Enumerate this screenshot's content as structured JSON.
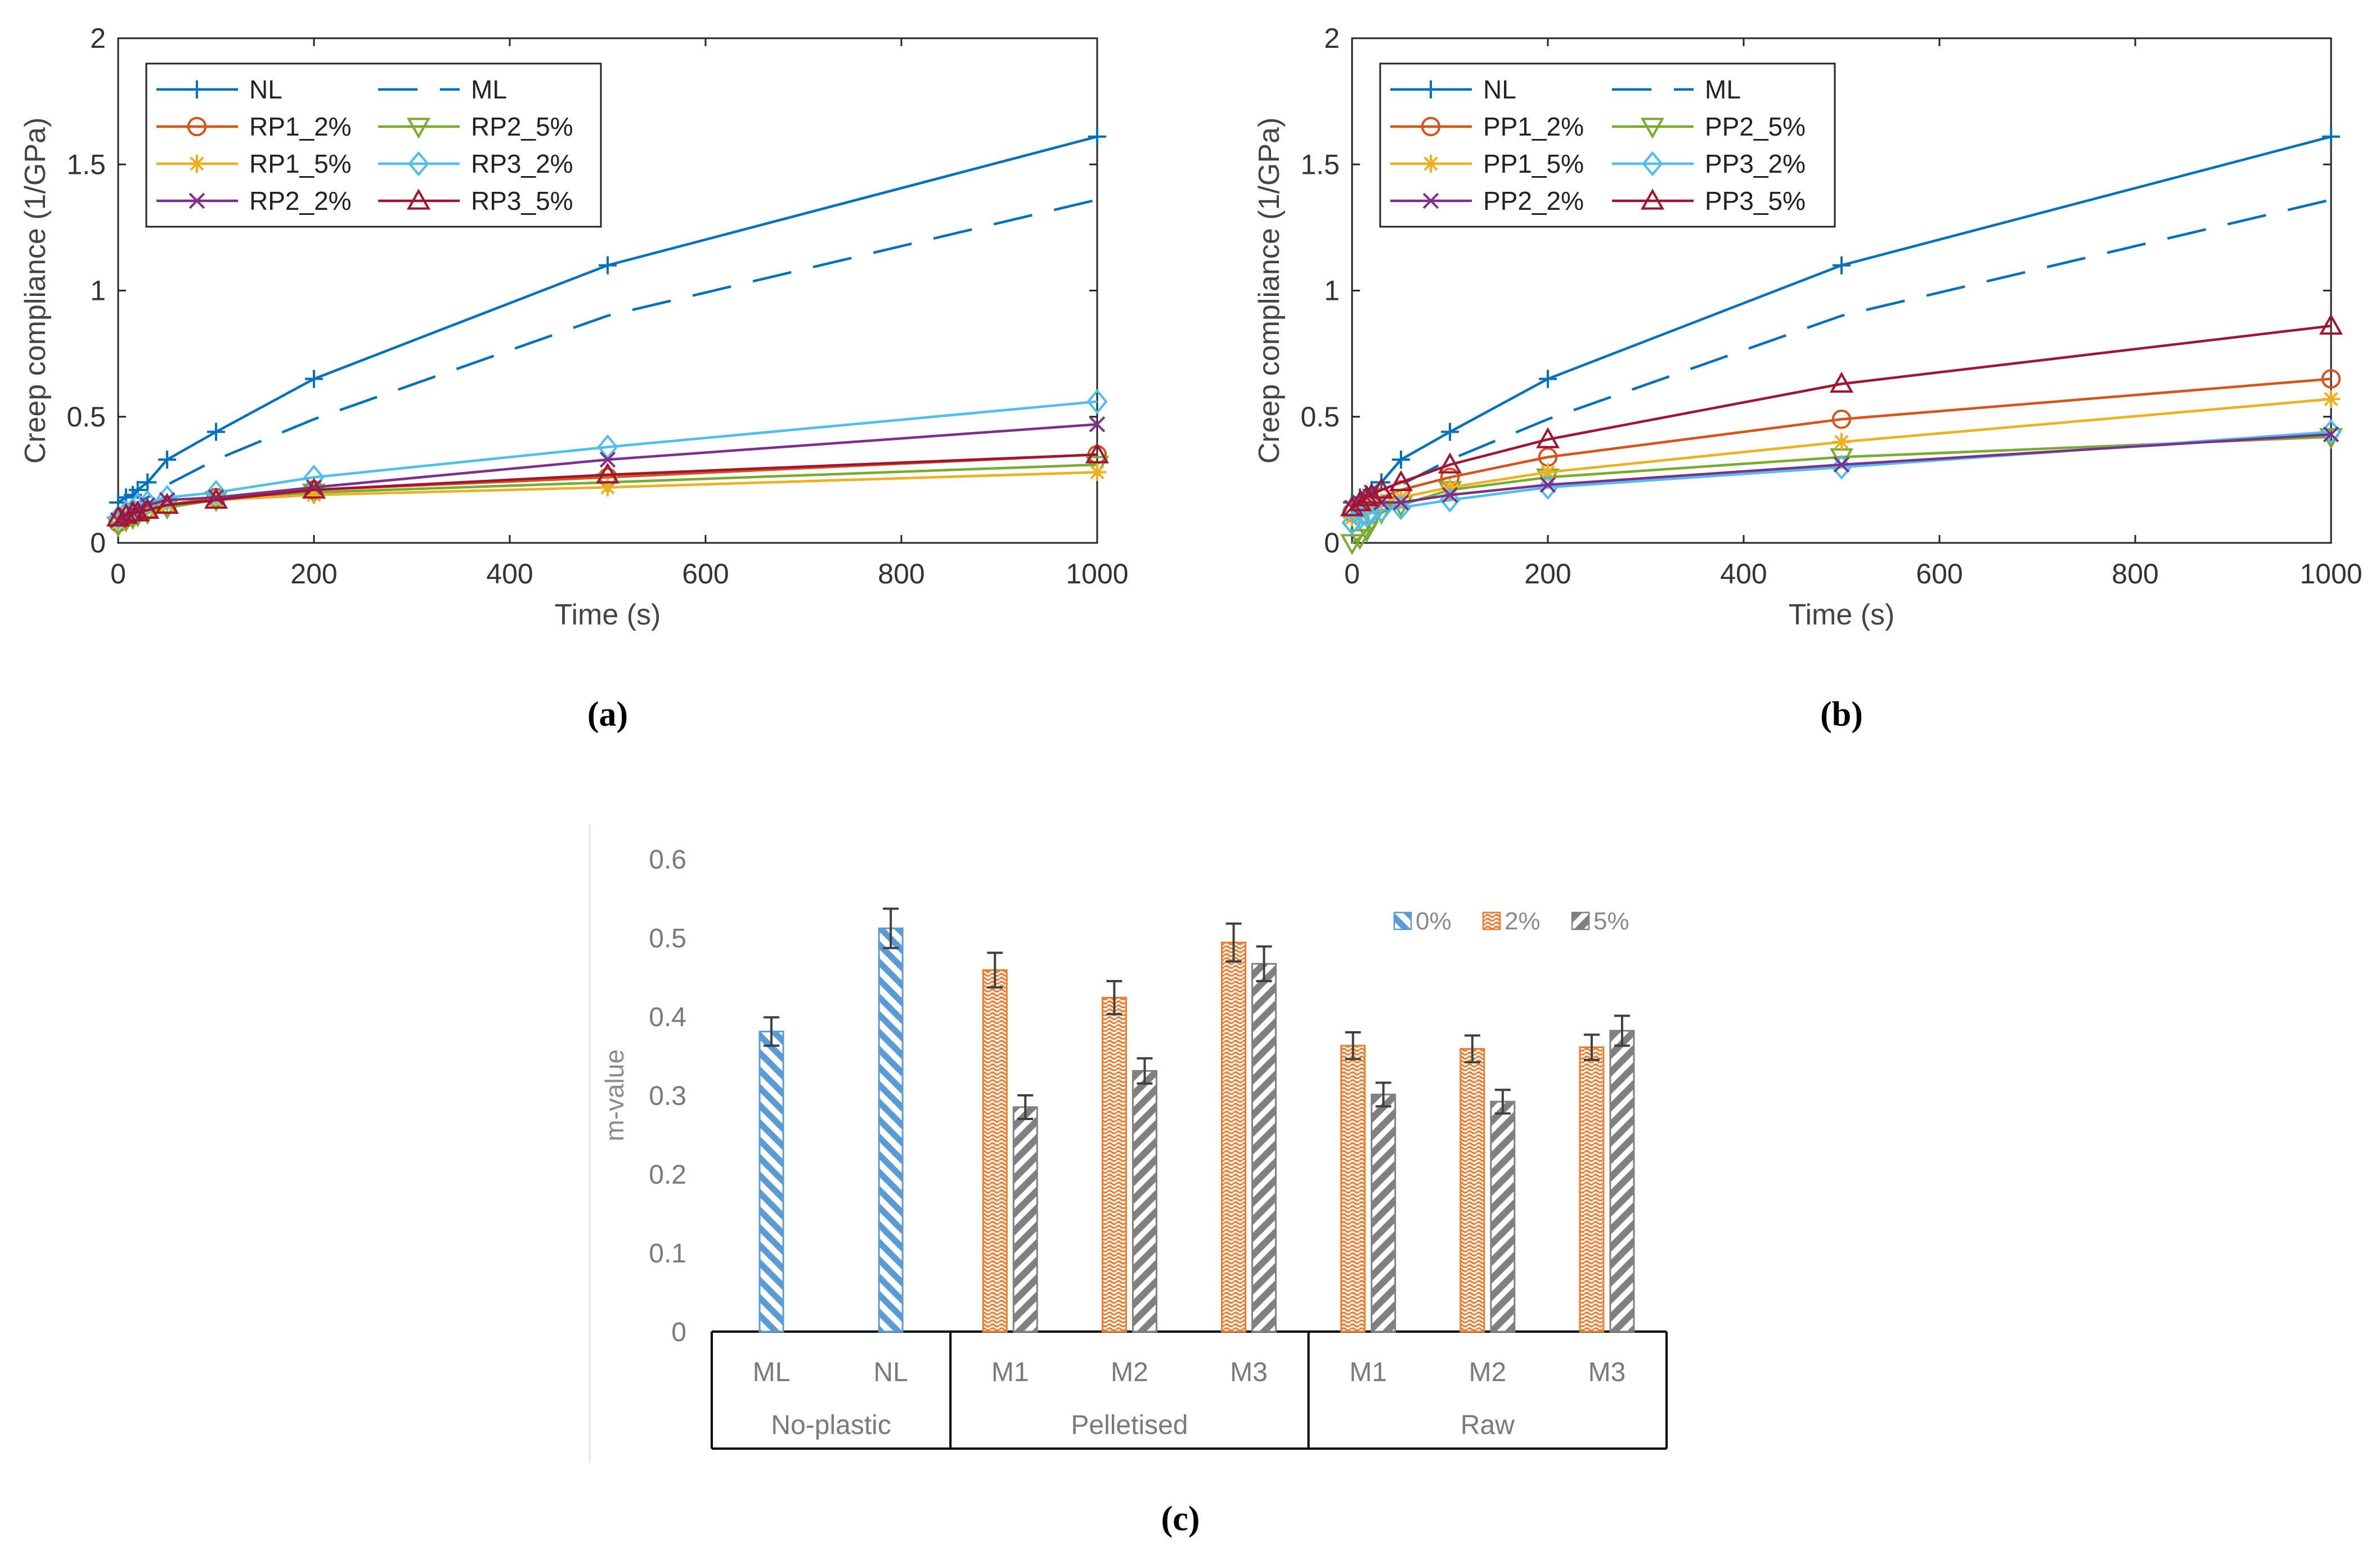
{
  "chart_data": [
    {
      "type": "line",
      "panel_caption": "(a)",
      "xlabel": "Time (s)",
      "ylabel": "Creep compliance (1/GPa)",
      "xlim": [
        0,
        1000
      ],
      "ylim": [
        0,
        2
      ],
      "xticks": [
        0,
        200,
        400,
        600,
        800,
        1000
      ],
      "yticks": [
        0,
        0.5,
        1,
        1.5,
        2
      ],
      "ytick_labels": [
        "0",
        "0.5",
        "1",
        "1.5",
        "2"
      ],
      "legend": "top-left",
      "series": [
        {
          "name": "NL",
          "color": "#0072BD",
          "marker": "plus",
          "dash": "solid",
          "x": [
            0,
            8,
            15,
            20,
            30,
            50,
            100,
            200,
            500,
            1000
          ],
          "y": [
            0.16,
            0.18,
            0.19,
            0.21,
            0.24,
            0.33,
            0.44,
            0.65,
            1.1,
            1.61
          ]
        },
        {
          "name": "ML",
          "color": "#0072BD",
          "marker": "none",
          "dash": "dashed",
          "x": [
            0,
            8,
            15,
            20,
            30,
            50,
            100,
            200,
            500,
            1000
          ],
          "y": [
            0.1,
            0.12,
            0.14,
            0.16,
            0.18,
            0.23,
            0.33,
            0.49,
            0.9,
            1.36
          ]
        },
        {
          "name": "RP1_2%",
          "color": "#D95319",
          "marker": "circle",
          "dash": "solid",
          "x": [
            0,
            8,
            15,
            20,
            30,
            50,
            100,
            200,
            500,
            1000
          ],
          "y": [
            0.08,
            0.1,
            0.11,
            0.12,
            0.13,
            0.15,
            0.18,
            0.21,
            0.26,
            0.35
          ]
        },
        {
          "name": "RP2_5%",
          "color": "#77AC30",
          "marker": "triangle-down",
          "dash": "solid",
          "x": [
            0,
            8,
            15,
            20,
            30,
            50,
            100,
            200,
            500,
            1000
          ],
          "y": [
            0.07,
            0.09,
            0.1,
            0.11,
            0.12,
            0.14,
            0.17,
            0.2,
            0.24,
            0.31
          ]
        },
        {
          "name": "RP1_5%",
          "color": "#EDB120",
          "marker": "asterisk",
          "dash": "solid",
          "x": [
            0,
            8,
            15,
            20,
            30,
            50,
            100,
            200,
            500,
            1000
          ],
          "y": [
            0.08,
            0.1,
            0.11,
            0.12,
            0.13,
            0.15,
            0.17,
            0.19,
            0.22,
            0.28
          ]
        },
        {
          "name": "RP3_2%",
          "color": "#4DBEEE",
          "marker": "diamond",
          "dash": "solid",
          "x": [
            0,
            8,
            15,
            20,
            30,
            50,
            100,
            200,
            500,
            1000
          ],
          "y": [
            0.1,
            0.12,
            0.13,
            0.15,
            0.16,
            0.18,
            0.2,
            0.26,
            0.38,
            0.56
          ]
        },
        {
          "name": "RP2_2%",
          "color": "#7E2F8E",
          "marker": "cross",
          "dash": "solid",
          "x": [
            0,
            8,
            15,
            20,
            30,
            50,
            100,
            200,
            500,
            1000
          ],
          "y": [
            0.09,
            0.11,
            0.12,
            0.13,
            0.15,
            0.17,
            0.18,
            0.22,
            0.33,
            0.47
          ]
        },
        {
          "name": "RP3_5%",
          "color": "#A2142F",
          "marker": "triangle-up",
          "dash": "solid",
          "x": [
            0,
            8,
            15,
            20,
            30,
            50,
            100,
            200,
            500,
            1000
          ],
          "y": [
            0.1,
            0.11,
            0.12,
            0.12,
            0.13,
            0.15,
            0.17,
            0.21,
            0.27,
            0.35
          ]
        }
      ]
    },
    {
      "type": "line",
      "panel_caption": "(b)",
      "xlabel": "Time (s)",
      "ylabel": "Creep compliance (1/GPa)",
      "xlim": [
        0,
        1000
      ],
      "ylim": [
        0,
        2
      ],
      "xticks": [
        0,
        200,
        400,
        600,
        800,
        1000
      ],
      "yticks": [
        0,
        0.5,
        1,
        1.5,
        2
      ],
      "ytick_labels": [
        "0",
        "0.5",
        "1",
        "1.5",
        "2"
      ],
      "legend": "top-left",
      "series": [
        {
          "name": "NL",
          "color": "#0072BD",
          "marker": "plus",
          "dash": "solid",
          "x": [
            0,
            8,
            15,
            20,
            30,
            50,
            100,
            200,
            500,
            1000
          ],
          "y": [
            0.16,
            0.18,
            0.19,
            0.21,
            0.24,
            0.33,
            0.44,
            0.65,
            1.1,
            1.61
          ]
        },
        {
          "name": "ML",
          "color": "#0072BD",
          "marker": "none",
          "dash": "dashed",
          "x": [
            0,
            8,
            15,
            20,
            30,
            50,
            100,
            200,
            500,
            1000
          ],
          "y": [
            0.1,
            0.12,
            0.14,
            0.16,
            0.18,
            0.23,
            0.33,
            0.49,
            0.9,
            1.36
          ]
        },
        {
          "name": "PP1_2%",
          "color": "#D95319",
          "marker": "circle",
          "dash": "solid",
          "x": [
            0,
            8,
            15,
            20,
            30,
            50,
            100,
            200,
            500,
            1000
          ],
          "y": [
            0.12,
            0.14,
            0.15,
            0.16,
            0.18,
            0.21,
            0.26,
            0.34,
            0.49,
            0.65
          ]
        },
        {
          "name": "PP2_5%",
          "color": "#77AC30",
          "marker": "triangle-down",
          "dash": "solid",
          "x": [
            0,
            8,
            15,
            20,
            30,
            50,
            100,
            200,
            500,
            1000
          ],
          "y": [
            0.0,
            0.02,
            0.05,
            0.09,
            0.12,
            0.15,
            0.21,
            0.26,
            0.34,
            0.42
          ]
        },
        {
          "name": "PP1_5%",
          "color": "#EDB120",
          "marker": "asterisk",
          "dash": "solid",
          "x": [
            0,
            8,
            15,
            20,
            30,
            50,
            100,
            200,
            500,
            1000
          ],
          "y": [
            0.1,
            0.12,
            0.14,
            0.15,
            0.16,
            0.18,
            0.22,
            0.28,
            0.4,
            0.57
          ]
        },
        {
          "name": "PP3_2%",
          "color": "#4DBEEE",
          "marker": "diamond",
          "dash": "solid",
          "x": [
            0,
            8,
            15,
            20,
            30,
            50,
            100,
            200,
            500,
            1000
          ],
          "y": [
            0.08,
            0.1,
            0.11,
            0.12,
            0.13,
            0.14,
            0.17,
            0.22,
            0.3,
            0.44
          ]
        },
        {
          "name": "PP2_2%",
          "color": "#7E2F8E",
          "marker": "cross",
          "dash": "solid",
          "x": [
            0,
            8,
            15,
            20,
            30,
            50,
            100,
            200,
            500,
            1000
          ],
          "y": [
            0.14,
            0.16,
            0.18,
            0.2,
            0.16,
            0.16,
            0.19,
            0.23,
            0.31,
            0.43
          ]
        },
        {
          "name": "PP3_5%",
          "color": "#A2142F",
          "marker": "triangle-up",
          "dash": "solid",
          "x": [
            0,
            8,
            15,
            20,
            30,
            50,
            100,
            200,
            500,
            1000
          ],
          "y": [
            0.14,
            0.16,
            0.18,
            0.19,
            0.21,
            0.24,
            0.31,
            0.41,
            0.63,
            0.86
          ]
        }
      ]
    },
    {
      "type": "bar",
      "panel_caption": "(c)",
      "ylabel": "m-value",
      "ylim": [
        0,
        0.6
      ],
      "yticks": [
        0,
        0.1,
        0.2,
        0.3,
        0.4,
        0.5,
        0.6
      ],
      "ytick_labels": [
        "0",
        "0.1",
        "0.2",
        "0.3",
        "0.4",
        "0.5",
        "0.6"
      ],
      "legend": "top-right",
      "groups": [
        {
          "label": "No-plastic",
          "categories": [
            "ML",
            "NL"
          ]
        },
        {
          "label": "Pelletised",
          "categories": [
            "M1",
            "M2",
            "M3"
          ]
        },
        {
          "label": "Raw",
          "categories": [
            "M1",
            "M2",
            "M3"
          ]
        }
      ],
      "series": [
        {
          "name": "0%",
          "color": "#5B9BD5",
          "values": [
            0.381,
            0.512,
            null,
            null,
            null,
            null,
            null,
            null
          ],
          "errors": [
            0.018,
            0.025,
            null,
            null,
            null,
            null,
            null,
            null
          ]
        },
        {
          "name": "2%",
          "color": "#ED7D31",
          "values": [
            null,
            null,
            0.459,
            0.424,
            0.494,
            0.363,
            0.359,
            0.361
          ],
          "errors": [
            null,
            null,
            0.022,
            0.021,
            0.024,
            0.017,
            0.017,
            0.016
          ]
        },
        {
          "name": "5%",
          "color": "#808080",
          "values": [
            null,
            null,
            0.285,
            0.331,
            0.467,
            0.301,
            0.292,
            0.382
          ],
          "errors": [
            null,
            null,
            0.015,
            0.016,
            0.022,
            0.015,
            0.015,
            0.019
          ]
        }
      ]
    }
  ]
}
